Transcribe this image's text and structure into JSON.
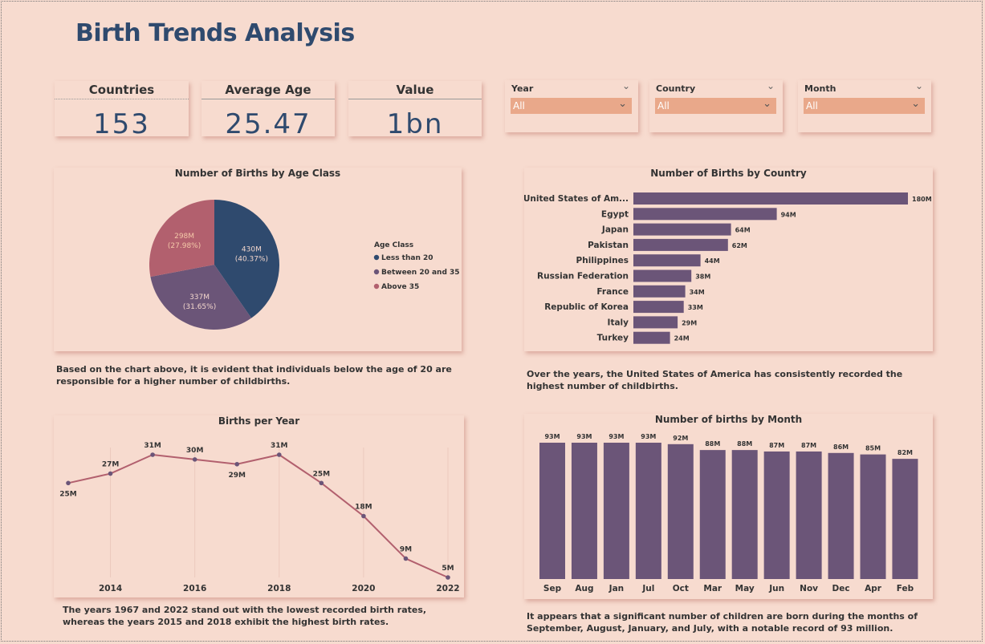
{
  "header": {
    "title": "Birth Trends Analysis"
  },
  "kpis": [
    {
      "label": "Countries",
      "value": "153"
    },
    {
      "label": "Average Age",
      "value": "25.47"
    },
    {
      "label": "Value",
      "value": "1bn"
    }
  ],
  "slicers": [
    {
      "label": "Year",
      "value": "All"
    },
    {
      "label": "Country",
      "value": "All"
    },
    {
      "label": "Month",
      "value": "All"
    }
  ],
  "colors": {
    "navy": "#2f4a6e",
    "purple": "#6b5578",
    "rose": "#b2606e",
    "slicer": "#e9a88a"
  },
  "chart_data": [
    {
      "type": "pie",
      "title": "Number of Births by Age Class",
      "legend_title": "Age Class",
      "legend_position": "right",
      "slices": [
        {
          "name": "Less than 20",
          "value_label": "430M",
          "pct_label": "(40.37%)",
          "pct": 40.37,
          "color": "#2f4a6e"
        },
        {
          "name": "Between 20 and 35",
          "value_label": "337M",
          "pct_label": "(31.65%)",
          "pct": 31.65,
          "color": "#6b5578"
        },
        {
          "name": "Above 35",
          "value_label": "298M",
          "pct_label": "(27.98%)",
          "pct": 27.98,
          "color": "#b2606e"
        }
      ]
    },
    {
      "type": "bar",
      "orientation": "horizontal",
      "title": "Number of Births by Country",
      "categories": [
        "United States of Am...",
        "Egypt",
        "Japan",
        "Pakistan",
        "Philippines",
        "Russian Federation",
        "France",
        "Republic of Korea",
        "Italy",
        "Turkey"
      ],
      "values": [
        180,
        94,
        64,
        62,
        44,
        38,
        34,
        33,
        29,
        24
      ],
      "labels": [
        "180M",
        "94M",
        "64M",
        "62M",
        "44M",
        "38M",
        "34M",
        "33M",
        "29M",
        "24M"
      ],
      "xlim": [
        0,
        180
      ],
      "color": "#6b5578"
    },
    {
      "type": "line",
      "title": "Births per Year",
      "x": [
        2013,
        2014,
        2015,
        2016,
        2017,
        2018,
        2019,
        2020,
        2021,
        2022
      ],
      "values": [
        25,
        27,
        31,
        30,
        29,
        31,
        25,
        18,
        9,
        5
      ],
      "labels": [
        "25M",
        "27M",
        "31M",
        "30M",
        "29M",
        "31M",
        "25M",
        "18M",
        "9M",
        "5M"
      ],
      "label_positions": [
        "below",
        "above",
        "above",
        "above",
        "below",
        "above",
        "above",
        "above",
        "above",
        "above"
      ],
      "xticks": [
        "2014",
        "2016",
        "2018",
        "2020",
        "2022"
      ],
      "xtick_values": [
        2014,
        2016,
        2018,
        2020,
        2022
      ],
      "ylim": [
        5,
        31
      ],
      "color": "#b2606e"
    },
    {
      "type": "bar",
      "title": "Number of births by Month",
      "categories": [
        "Sep",
        "Aug",
        "Jan",
        "Jul",
        "Oct",
        "Mar",
        "May",
        "Jun",
        "Nov",
        "Dec",
        "Apr",
        "Feb"
      ],
      "values": [
        93,
        93,
        93,
        93,
        92,
        88,
        88,
        87,
        87,
        86,
        85,
        82
      ],
      "labels": [
        "93M",
        "93M",
        "93M",
        "93M",
        "92M",
        "88M",
        "88M",
        "87M",
        "87M",
        "86M",
        "85M",
        "82M"
      ],
      "ylim": [
        0,
        93
      ],
      "color": "#6b5578"
    }
  ],
  "notes": {
    "age": "Based on the chart above, it is evident that individuals below the age of 20 are responsible for a higher number of childbirths.",
    "country": "Over the years, the United States of America has consistently recorded the highest number of childbirths.",
    "year": "The years 1967 and 2022 stand out with the lowest recorded birth rates, whereas the years 2015 and 2018 exhibit the highest birth rates.",
    "month": "It appears that a significant number of children are born during the months of September, August, January, and July, with a notable record of 93 million."
  }
}
